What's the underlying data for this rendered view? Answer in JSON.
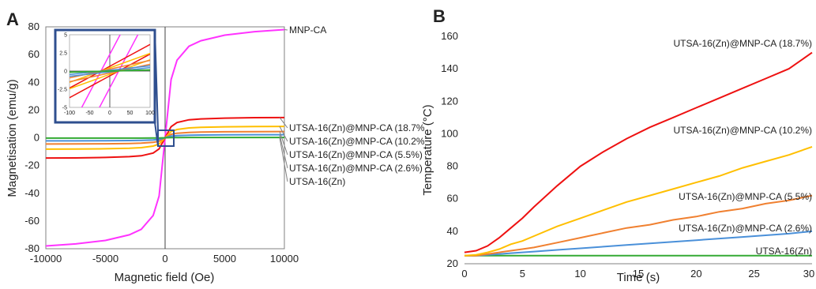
{
  "figure": {
    "panels": [
      {
        "letter": "A",
        "chart_data_index": 0
      },
      {
        "letter": "B",
        "chart_data_index": 1
      }
    ]
  },
  "chart_data": [
    {
      "type": "line",
      "panel": "A",
      "title": "",
      "xlabel": "Magnetic field (Oe)",
      "ylabel": "Magnetisation (emu/g)",
      "xlim": [
        -10000,
        10000
      ],
      "ylim": [
        -80,
        80
      ],
      "xticks": [
        "-10000",
        "-5000",
        "0",
        "5000",
        "10000"
      ],
      "yticks": [
        "-80",
        "-60",
        "-40",
        "-20",
        "0",
        "20",
        "40",
        "60",
        "80"
      ],
      "x": [
        -10000,
        -7500,
        -5000,
        -3000,
        -2000,
        -1000,
        -500,
        0,
        500,
        1000,
        2000,
        3000,
        5000,
        7500,
        10000
      ],
      "series": [
        {
          "name": "MNP-CA",
          "color": "#ff33ff",
          "values": [
            -78,
            -76.5,
            -74,
            -70,
            -66,
            -56,
            -42,
            0,
            42,
            56,
            66,
            70,
            74,
            76.5,
            78
          ]
        },
        {
          "name": "UTSA-16(Zn)@MNP-CA (18.7%",
          "color": "#ee1111",
          "values": [
            -14.6,
            -14.5,
            -14.2,
            -13.6,
            -13,
            -11,
            -8,
            0,
            8,
            11,
            13,
            13.6,
            14.2,
            14.5,
            14.6
          ]
        },
        {
          "name": "UTSA-16(Zn)@MNP-CA (10.2%",
          "color": "#ffbf00",
          "values": [
            -8.2,
            -8.1,
            -7.9,
            -7.5,
            -7.1,
            -6,
            -4.5,
            0,
            4.5,
            6,
            7.1,
            7.5,
            7.9,
            8.1,
            8.2
          ]
        },
        {
          "name": "UTSA-16(Zn)@MNP-CA (5.5%)",
          "color": "#f08030",
          "values": [
            -4.5,
            -4.4,
            -4.3,
            -4.1,
            -3.9,
            -3.3,
            -2.5,
            0,
            2.5,
            3.3,
            3.9,
            4.1,
            4.3,
            4.4,
            4.5
          ]
        },
        {
          "name": "UTSA-16(Zn)@MNP-CA (2.6%)",
          "color": "#4a90d9",
          "values": [
            -2.2,
            -2.2,
            -2.1,
            -2,
            -1.9,
            -1.6,
            -1.2,
            0,
            1.2,
            1.6,
            1.9,
            2,
            2.1,
            2.2,
            2.2
          ]
        },
        {
          "name": "UTSA-16(Zn)",
          "color": "#33aa33",
          "values": [
            -0.2,
            -0.2,
            -0.2,
            -0.2,
            -0.2,
            -0.1,
            -0.1,
            0,
            0.1,
            0.1,
            0.2,
            0.2,
            0.2,
            0.2,
            0.2
          ]
        }
      ],
      "inset": {
        "xlim": [
          -100,
          100
        ],
        "ylim": [
          -5,
          5
        ],
        "xticks": [
          "-100",
          "-50",
          "0",
          "50",
          "100"
        ],
        "yticks": [
          "5",
          "2.5",
          "0",
          "-2.5",
          "-5"
        ],
        "frame_color": "#2f4f8f",
        "loops": [
          {
            "color": "#ff33ff",
            "slope": 0.105,
            "coercivity": 22
          },
          {
            "color": "#ee1111",
            "slope": 0.03,
            "coercivity": 22
          },
          {
            "color": "#ffbf00",
            "slope": 0.02,
            "coercivity": 22
          },
          {
            "color": "#f08030",
            "slope": 0.012,
            "coercivity": 22
          },
          {
            "color": "#4a90d9",
            "slope": 0.006,
            "coercivity": 20
          },
          {
            "color": "#33aa33",
            "slope": 0.0015,
            "coercivity": 15
          }
        ]
      }
    },
    {
      "type": "line",
      "panel": "B",
      "title": "",
      "xlabel": "Time (s)",
      "ylabel": "Temperature (°C)",
      "xlim": [
        0,
        30
      ],
      "ylim": [
        20,
        160
      ],
      "xticks": [
        "0",
        "5",
        "10",
        "15",
        "20",
        "25",
        "30"
      ],
      "yticks": [
        "20",
        "40",
        "60",
        "80",
        "100",
        "120",
        "140",
        "160"
      ],
      "x": [
        0,
        1,
        2,
        3,
        4,
        5,
        6,
        8,
        10,
        12,
        14,
        16,
        18,
        20,
        22,
        24,
        26,
        28,
        30
      ],
      "series": [
        {
          "name": "UTSA-16(Zn)@MNP-CA (18.7%)",
          "color": "#ee1111",
          "values": [
            27,
            28,
            31,
            36,
            42,
            48,
            55,
            68,
            80,
            89,
            97,
            104,
            110,
            116,
            122,
            128,
            134,
            140,
            150
          ]
        },
        {
          "name": "UTSA-16(Zn)@MNP-CA (10.2%)",
          "color": "#ffbf00",
          "values": [
            25,
            25.5,
            27,
            29,
            32,
            34,
            37,
            43,
            48,
            53,
            58,
            62,
            66,
            70,
            74,
            79,
            83,
            87,
            92
          ]
        },
        {
          "name": "UTSA-16(Zn)@MNP-CA (5.5%)",
          "color": "#f08030",
          "values": [
            25,
            25,
            26,
            27,
            28,
            29,
            30,
            33,
            36,
            39,
            42,
            44,
            47,
            49,
            52,
            54,
            57,
            59,
            62
          ]
        },
        {
          "name": "UTSA-16(Zn)@MNP-CA (2.6%)",
          "color": "#4a90d9",
          "values": [
            25,
            25,
            25.5,
            26,
            26.5,
            27,
            27.5,
            28.5,
            29.5,
            30.5,
            31.5,
            32.5,
            33.5,
            34.5,
            35.5,
            36.5,
            37.5,
            38.5,
            40
          ]
        },
        {
          "name": "UTSA-16(Zn)",
          "color": "#33aa33",
          "values": [
            25,
            25,
            25,
            25,
            25,
            25,
            25,
            25,
            25,
            25,
            25,
            25,
            25,
            25,
            25,
            25,
            25,
            25,
            25
          ]
        }
      ]
    }
  ]
}
